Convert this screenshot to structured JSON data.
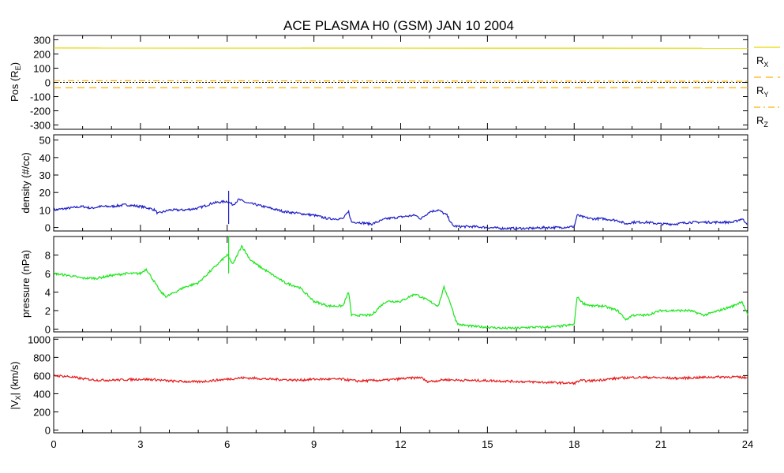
{
  "title": "ACE PLASMA H0 (GSM)   JAN 10 2004",
  "x_ticks": [
    "0",
    "3",
    "6",
    "9",
    "12",
    "15",
    "18",
    "21",
    "24"
  ],
  "chart_data": [
    {
      "type": "line",
      "panel": "position",
      "ylabel_main": "Pos (R",
      "ylabel_sub": "E",
      "ylabel_end": ")",
      "xlim": [
        0,
        24
      ],
      "ylim": [
        -330,
        330
      ],
      "yticks": [
        "-300",
        "-200",
        "-100",
        "0",
        "100",
        "200",
        "300"
      ],
      "zero_line": true,
      "legend_placement": "right",
      "series": [
        {
          "name": "R",
          "name_sub": "X",
          "style": "solid",
          "color": "#e6d800",
          "x": [
            0,
            24
          ],
          "values": [
            242,
            240
          ]
        },
        {
          "name": "R",
          "name_sub": "Y",
          "style": "dashed",
          "color": "#ffb000",
          "x": [
            0,
            24
          ],
          "values": [
            -38,
            -38
          ]
        },
        {
          "name": "R",
          "name_sub": "Z",
          "style": "dashdot",
          "color": "#ffb000",
          "x": [
            0,
            24
          ],
          "values": [
            12,
            8
          ]
        }
      ]
    },
    {
      "type": "line",
      "panel": "density",
      "ylabel_main": "density (#/cc)",
      "xlim": [
        0,
        24
      ],
      "ylim": [
        -2,
        53
      ],
      "yticks": [
        "0",
        "10",
        "20",
        "30",
        "40",
        "50"
      ],
      "series": [
        {
          "color": "#1e1ec8",
          "x": [
            0,
            0.5,
            1,
            1.3,
            1.6,
            2,
            2.5,
            3,
            3.3,
            3.5,
            3.6,
            3.8,
            4,
            4.5,
            5,
            5.5,
            6,
            6.1,
            6.2,
            6.4,
            6.7,
            7,
            7.5,
            8,
            8.5,
            9,
            9.5,
            10,
            10.2,
            10.3,
            10.5,
            11,
            11.5,
            12,
            12.5,
            12.7,
            13,
            13.3,
            13.6,
            13.8,
            14,
            14.5,
            15,
            15.5,
            16,
            16.5,
            17,
            17.5,
            18,
            18.1,
            18.3,
            18.6,
            19,
            19.5,
            19.8,
            20,
            20.5,
            21,
            21.5,
            22,
            22.5,
            23,
            23.5,
            23.8,
            24
          ],
          "values": [
            10,
            11,
            12,
            11,
            12,
            12,
            13,
            12,
            11,
            10,
            8,
            9,
            10,
            10,
            11,
            14,
            15,
            14,
            13,
            16,
            14,
            13,
            11,
            9,
            8,
            7,
            5,
            5,
            9,
            3,
            3,
            2,
            5,
            6,
            7,
            5,
            9,
            10,
            7,
            1,
            0.5,
            0.5,
            0,
            -0.5,
            -0.5,
            -0.5,
            0,
            0,
            0.5,
            7,
            6,
            5,
            5,
            4,
            2,
            3,
            3,
            2,
            2,
            3,
            3,
            3,
            3,
            5,
            2
          ]
        }
      ],
      "spike": {
        "x": 6.05,
        "low": 2,
        "high": 21
      }
    },
    {
      "type": "line",
      "panel": "pressure",
      "ylabel_main": "pressure (nPa)",
      "xlim": [
        0,
        24
      ],
      "ylim": [
        -0.3,
        10
      ],
      "yticks": [
        "0",
        "2",
        "4",
        "6",
        "8"
      ],
      "series": [
        {
          "color": "#1ae61a",
          "x": [
            0,
            0.5,
            1,
            1.5,
            2,
            2.5,
            3,
            3.2,
            3.5,
            3.7,
            3.9,
            4.2,
            4.5,
            5,
            5.5,
            6,
            6.2,
            6.5,
            6.8,
            7,
            7.5,
            8,
            8.5,
            9,
            9.5,
            10,
            10.2,
            10.3,
            10.5,
            11,
            11.3,
            11.5,
            12,
            12.3,
            12.5,
            13,
            13.3,
            13.5,
            13.7,
            13.9,
            14,
            14.5,
            15,
            15.5,
            16,
            16.5,
            17,
            17.5,
            18,
            18.1,
            18.3,
            18.6,
            19,
            19.5,
            19.8,
            20,
            20.5,
            21,
            21.5,
            22,
            22.5,
            23,
            23.5,
            23.8,
            24
          ],
          "values": [
            6,
            5.8,
            5.5,
            5.5,
            5.8,
            6,
            6,
            6.5,
            5,
            4,
            3.5,
            4,
            4.5,
            5,
            6.5,
            8,
            7,
            9,
            7.5,
            7,
            6,
            5,
            4.5,
            3,
            2.5,
            2.5,
            4,
            1.5,
            1.5,
            1.5,
            2.5,
            3,
            3,
            3.5,
            3.8,
            3,
            2.5,
            4.5,
            3,
            1,
            0.5,
            0.3,
            0.2,
            0.1,
            0.1,
            0.2,
            0.2,
            0.3,
            0.5,
            3.5,
            2.8,
            2.5,
            2.5,
            2,
            1,
            1.5,
            1.5,
            2,
            2,
            2,
            1.5,
            2,
            2.5,
            3,
            1.5
          ]
        }
      ],
      "spike": {
        "x": 6.05,
        "low": 6,
        "high": 10
      }
    },
    {
      "type": "line",
      "panel": "velocity",
      "ylabel_main": "|V",
      "ylabel_sub": "X",
      "ylabel_end": "| (km/s)",
      "xlim": [
        0,
        24
      ],
      "ylim": [
        -30,
        1020
      ],
      "yticks": [
        "0",
        "200",
        "400",
        "600",
        "800",
        "1000"
      ],
      "series": [
        {
          "color": "#e61a1a",
          "x": [
            0,
            0.5,
            1,
            1.5,
            2,
            2.5,
            3,
            3.5,
            4,
            4.5,
            5,
            5.5,
            6,
            6.5,
            7,
            7.5,
            8,
            8.5,
            9,
            9.5,
            10,
            10.5,
            11,
            11.5,
            12,
            12.5,
            12.7,
            12.9,
            13.2,
            13.5,
            14,
            14.5,
            15,
            15.5,
            16,
            16.5,
            17,
            17.5,
            18,
            18.2,
            18.5,
            19,
            19.5,
            20,
            20.5,
            21,
            21.5,
            22,
            22.5,
            23,
            23.5,
            24
          ],
          "values": [
            600,
            590,
            565,
            550,
            550,
            555,
            560,
            555,
            540,
            535,
            530,
            545,
            560,
            575,
            570,
            560,
            555,
            550,
            560,
            560,
            560,
            540,
            545,
            550,
            565,
            575,
            580,
            535,
            540,
            555,
            550,
            545,
            545,
            540,
            535,
            530,
            525,
            520,
            515,
            545,
            540,
            555,
            570,
            580,
            580,
            575,
            570,
            575,
            580,
            585,
            585,
            575
          ]
        }
      ]
    }
  ]
}
